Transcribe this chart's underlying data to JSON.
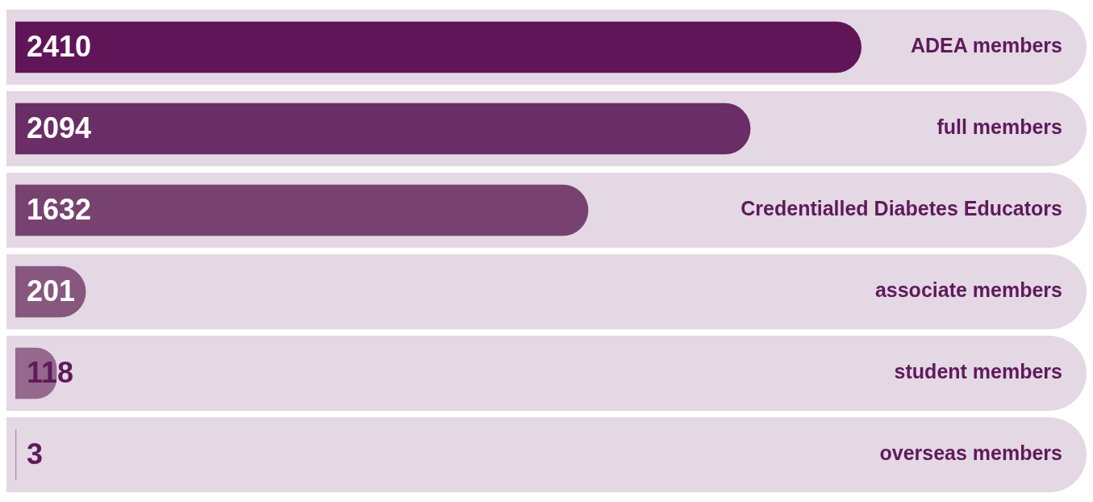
{
  "chart_data": {
    "type": "bar",
    "orientation": "horizontal",
    "categories": [
      "ADEA members",
      "full members",
      "Credentialled Diabetes Educators",
      "associate members",
      "student members",
      "overseas members"
    ],
    "values": [
      2410,
      2094,
      1632,
      201,
      118,
      3
    ],
    "colors": [
      "#601558",
      "#6a2d65",
      "#784270",
      "#87577f",
      "#95698d",
      "#b08daa"
    ],
    "data_labels": true,
    "legend": false,
    "tick_labels": false
  }
}
